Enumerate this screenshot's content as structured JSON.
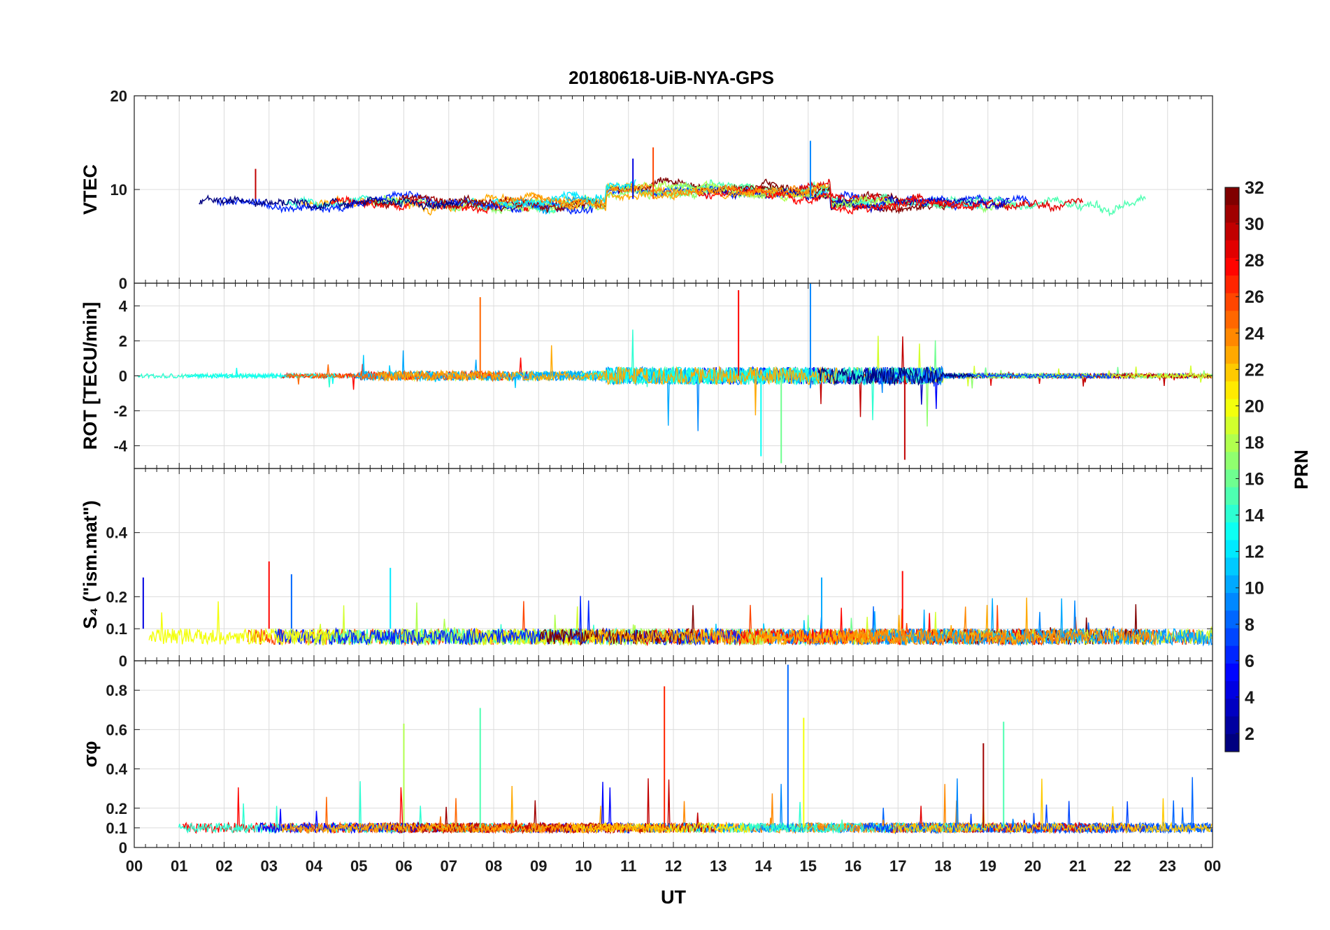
{
  "chart_data": {
    "title": "20180618-UiB-NYA-GPS",
    "xlabel": "UT",
    "x_tick_labels": [
      "00",
      "01",
      "02",
      "03",
      "04",
      "05",
      "06",
      "07",
      "08",
      "09",
      "10",
      "11",
      "12",
      "13",
      "14",
      "15",
      "16",
      "17",
      "18",
      "19",
      "20",
      "21",
      "22",
      "23",
      "00"
    ],
    "xlim": [
      0,
      24
    ],
    "colorbar": {
      "label": "PRN",
      "colormap": "jet",
      "range": [
        1,
        32
      ],
      "tick_values": [
        2,
        4,
        6,
        8,
        10,
        12,
        14,
        16,
        18,
        20,
        22,
        24,
        26,
        28,
        30,
        32
      ],
      "tick_labels": [
        "2",
        "4",
        "6",
        "8",
        "10",
        "12",
        "14",
        "16",
        "18",
        "20",
        "22",
        "24",
        "26",
        "28",
        "30",
        "32"
      ]
    },
    "panels": [
      {
        "type": "line",
        "ylabel": "VTEC",
        "ylim": [
          0,
          20
        ],
        "y_tick_values": [
          0,
          10,
          20
        ],
        "y_tick_labels": [
          "0",
          "10",
          "20"
        ],
        "grid": true,
        "series_color_by": "PRN",
        "peaks": [
          {
            "x": 15.05,
            "y": 15.2,
            "prn": 9
          },
          {
            "x": 11.55,
            "y": 14.5,
            "prn": 26
          },
          {
            "x": 11.1,
            "y": 13.3,
            "prn": 4
          },
          {
            "x": 2.7,
            "y": 12.2,
            "prn": 30
          }
        ]
      },
      {
        "type": "line",
        "ylabel": "ROT [TECU/min]",
        "ylim": [
          -5.3,
          5.3
        ],
        "y_tick_values": [
          -4,
          -2,
          0,
          2,
          4
        ],
        "y_tick_labels": [
          "-4",
          "-2",
          "0",
          "2",
          "4"
        ],
        "grid": true,
        "series_color_by": "PRN",
        "peaks": [
          {
            "x": 15.05,
            "y": 5.3,
            "prn": 9
          },
          {
            "x": 13.45,
            "y": 4.9,
            "prn": 28
          },
          {
            "x": 7.7,
            "y": 4.5,
            "prn": 25
          },
          {
            "x": 14.4,
            "y": -5.0,
            "prn": 16
          },
          {
            "x": 17.15,
            "y": -4.8,
            "prn": 30
          },
          {
            "x": 13.95,
            "y": -4.6,
            "prn": 13
          }
        ]
      },
      {
        "type": "line",
        "ylabel": "S₄ (\"ism.mat\")",
        "ylim": [
          0,
          0.6
        ],
        "y_tick_values": [
          0,
          0.1,
          0.2,
          0.4
        ],
        "y_tick_labels": [
          "0",
          "0.1",
          "0.2",
          "0.4"
        ],
        "grid": true,
        "series_color_by": "PRN",
        "peaks": [
          {
            "x": 3.0,
            "y": 0.31,
            "prn": 28
          },
          {
            "x": 5.7,
            "y": 0.29,
            "prn": 12
          },
          {
            "x": 17.1,
            "y": 0.28,
            "prn": 28
          },
          {
            "x": 3.5,
            "y": 0.27,
            "prn": 8
          },
          {
            "x": 0.2,
            "y": 0.26,
            "prn": 4
          },
          {
            "x": 15.3,
            "y": 0.26,
            "prn": 10
          }
        ]
      },
      {
        "type": "line",
        "ylabel": "σφ",
        "ylim": [
          0,
          0.95
        ],
        "y_tick_values": [
          0,
          0.1,
          0.2,
          0.4,
          0.6,
          0.8
        ],
        "y_tick_labels": [
          "0",
          "0.1",
          "0.2",
          "0.4",
          "0.6",
          "0.8"
        ],
        "grid": true,
        "series_color_by": "PRN",
        "peaks": [
          {
            "x": 14.55,
            "y": 0.93,
            "prn": 8
          },
          {
            "x": 11.8,
            "y": 0.82,
            "prn": 27
          },
          {
            "x": 7.7,
            "y": 0.71,
            "prn": 15
          },
          {
            "x": 14.9,
            "y": 0.66,
            "prn": 20
          },
          {
            "x": 19.35,
            "y": 0.64,
            "prn": 15
          },
          {
            "x": 6.0,
            "y": 0.63,
            "prn": 18
          },
          {
            "x": 18.9,
            "y": 0.53,
            "prn": 31
          }
        ]
      }
    ]
  }
}
